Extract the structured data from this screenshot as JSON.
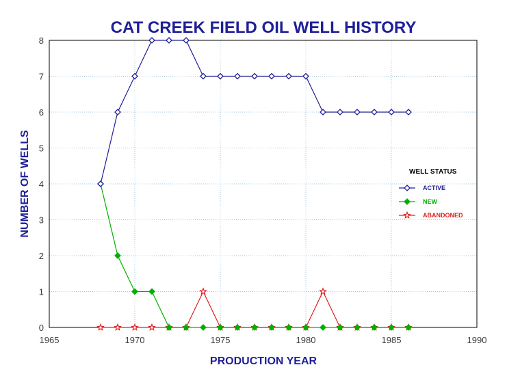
{
  "chart_data": {
    "type": "line",
    "title": "CAT CREEK FIELD OIL WELL HISTORY",
    "xlabel": "PRODUCTION YEAR",
    "ylabel": "NUMBER OF WELLS",
    "xlim": [
      1965,
      1990
    ],
    "ylim": [
      0,
      8
    ],
    "xticks": [
      1965,
      1970,
      1975,
      1980,
      1985,
      1990
    ],
    "yticks": [
      0,
      1,
      2,
      3,
      4,
      5,
      6,
      7,
      8
    ],
    "grid": true,
    "legend_title": "WELL STATUS",
    "legend_position": "right",
    "series": [
      {
        "name": "ACTIVE",
        "color": "#1f1f99",
        "marker": "open-diamond",
        "x": [
          1968,
          1969,
          1970,
          1971,
          1972,
          1973,
          1974,
          1975,
          1976,
          1977,
          1978,
          1979,
          1980,
          1981,
          1982,
          1983,
          1984,
          1985,
          1986
        ],
        "y": [
          4,
          6,
          7,
          8,
          8,
          8,
          7,
          7,
          7,
          7,
          7,
          7,
          7,
          6,
          6,
          6,
          6,
          6,
          6
        ]
      },
      {
        "name": "NEW",
        "color": "#00b000",
        "marker": "filled-diamond",
        "x": [
          1968,
          1969,
          1970,
          1971,
          1972,
          1973,
          1974,
          1975,
          1976,
          1977,
          1978,
          1979,
          1980,
          1981,
          1982,
          1983,
          1984,
          1985,
          1986
        ],
        "y": [
          4,
          2,
          1,
          1,
          0,
          0,
          0,
          0,
          0,
          0,
          0,
          0,
          0,
          0,
          0,
          0,
          0,
          0,
          0
        ]
      },
      {
        "name": "ABANDONED",
        "color": "#e02020",
        "marker": "open-star",
        "x": [
          1968,
          1969,
          1970,
          1971,
          1972,
          1973,
          1974,
          1975,
          1976,
          1977,
          1978,
          1979,
          1980,
          1981,
          1982,
          1983,
          1984,
          1985,
          1986
        ],
        "y": [
          0,
          0,
          0,
          0,
          0,
          0,
          1,
          0,
          0,
          0,
          0,
          0,
          0,
          1,
          0,
          0,
          0,
          0,
          0
        ]
      }
    ]
  },
  "colors": {
    "title": "#1f1f99",
    "axis_title": "#1f1f99",
    "grid": "#a8c8e0"
  }
}
